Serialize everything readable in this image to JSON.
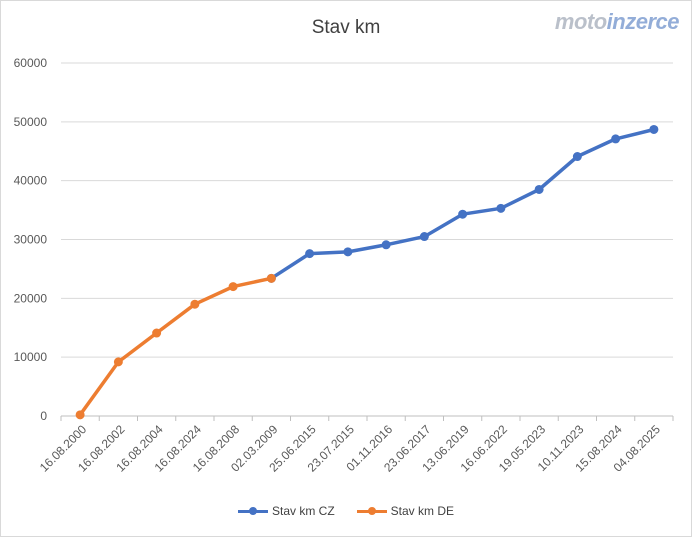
{
  "watermark": {
    "prefix": "moto",
    "highlight": "inzerce"
  },
  "chart_data": {
    "type": "line",
    "title": "Stav km",
    "xlabel": "",
    "ylabel": "",
    "categories": [
      "16.08.2000",
      "16.08.2002",
      "16.08.2004",
      "16.08.2024",
      "16.08.2008",
      "02.03.2009",
      "25.06.2015",
      "23.07.2015",
      "01.11.2016",
      "23.06.2017",
      "13.06.2019",
      "16.06.2022",
      "19.05.2023",
      "10.11.2023",
      "15.08.2024",
      "04.08.2025"
    ],
    "ylim": [
      0,
      60000
    ],
    "yticks": [
      0,
      10000,
      20000,
      30000,
      40000,
      50000,
      60000
    ],
    "grid": true,
    "legend_position": "bottom",
    "series": [
      {
        "name": "Stav km CZ",
        "color": "#4472c4",
        "values": [
          null,
          null,
          null,
          null,
          null,
          23400,
          27600,
          27900,
          29100,
          30500,
          34300,
          35300,
          38500,
          44100,
          47100,
          48700
        ]
      },
      {
        "name": "Stav km DE",
        "color": "#ed7d31",
        "values": [
          200,
          9200,
          14100,
          19000,
          22000,
          23400,
          null,
          null,
          null,
          null,
          null,
          null,
          null,
          null,
          null,
          null
        ]
      }
    ]
  }
}
